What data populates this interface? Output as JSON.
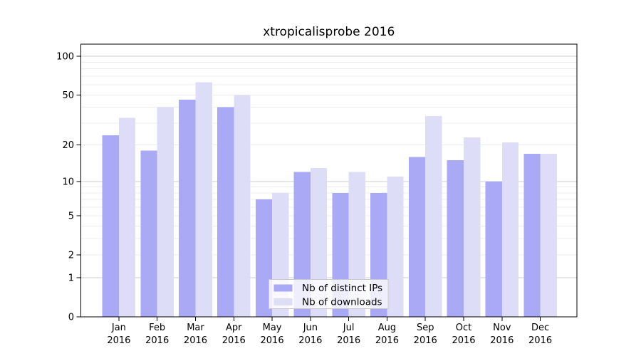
{
  "chart_data": {
    "type": "bar",
    "title": "xtropicalisprobe 2016",
    "year": "2016",
    "categories": [
      "Jan",
      "Feb",
      "Mar",
      "Apr",
      "May",
      "Jun",
      "Jul",
      "Aug",
      "Sep",
      "Oct",
      "Nov",
      "Dec"
    ],
    "series": [
      {
        "name": "Nb of distinct IPs",
        "color": "#a9a9f5",
        "values": [
          24,
          18,
          46,
          40,
          7,
          12,
          8,
          8,
          16,
          15,
          10,
          17
        ]
      },
      {
        "name": "Nb of downloads",
        "color": "#ddddf8",
        "values": [
          33,
          40,
          63,
          50,
          8,
          13,
          12,
          11,
          34,
          23,
          21,
          17
        ]
      }
    ],
    "xlabel": "",
    "ylabel": "",
    "yscale": "log10(1+value)",
    "ylim": [
      0,
      125
    ],
    "yticks": [
      0,
      1,
      2,
      5,
      10,
      20,
      50,
      100
    ],
    "gridlines_minor": [
      2,
      3,
      4,
      5,
      6,
      7,
      8,
      9,
      20,
      30,
      40,
      50,
      60,
      70,
      80,
      90
    ],
    "gridlines_major": [
      1,
      10,
      100
    ],
    "grid": true,
    "legend_position": "bottom-center",
    "colors": {
      "grid_minor": "#ececec",
      "grid_major": "#cdcdcd",
      "spine": "#000000",
      "legend_border": "#c8c8c8"
    }
  }
}
